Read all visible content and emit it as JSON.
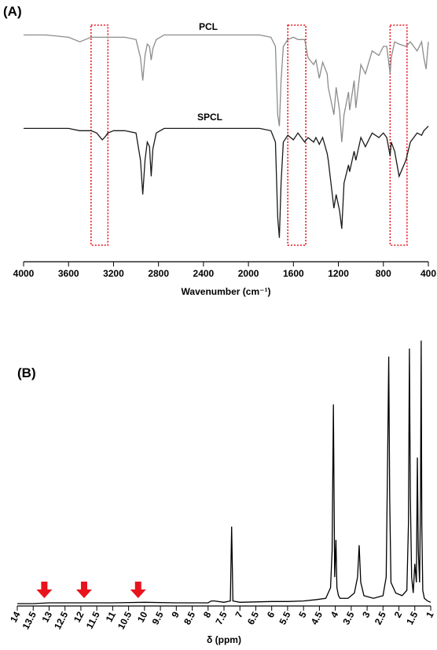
{
  "chart_data": [
    {
      "type": "line",
      "panel_label": "(A)",
      "xlabel": "Wavenumber (cm⁻¹)",
      "xlim": [
        4000,
        400
      ],
      "xticks": [
        4000,
        3600,
        3200,
        2800,
        2400,
        2000,
        1600,
        1200,
        800,
        400
      ],
      "ylim": [
        0,
        100
      ],
      "x": [
        4000,
        3800,
        3600,
        3500,
        3450,
        3400,
        3350,
        3300,
        3280,
        3250,
        3200,
        3100,
        3000,
        2960,
        2940,
        2920,
        2900,
        2880,
        2865,
        2850,
        2820,
        2750,
        2600,
        2400,
        2200,
        2000,
        1900,
        1800,
        1760,
        1740,
        1725,
        1710,
        1690,
        1650,
        1600,
        1560,
        1500,
        1470,
        1420,
        1400,
        1370,
        1340,
        1300,
        1290,
        1240,
        1220,
        1190,
        1170,
        1150,
        1110,
        1100,
        1060,
        1045,
        1000,
        960,
        900,
        840,
        800,
        770,
        740,
        730,
        700,
        660,
        600,
        560,
        500,
        460,
        440,
        420,
        400
      ],
      "series": [
        {
          "name": "PCL",
          "color": "#8c8c8c",
          "values": [
            95,
            95,
            94,
            92,
            93,
            94,
            94,
            94,
            94,
            94,
            94,
            94,
            93,
            85,
            75,
            86,
            91,
            90,
            84,
            89,
            93,
            95,
            95,
            95,
            95,
            95,
            95,
            94,
            90,
            60,
            55,
            75,
            90,
            93,
            94,
            93,
            93,
            85,
            82,
            84,
            76,
            83,
            78,
            72,
            60,
            72,
            62,
            48,
            60,
            70,
            62,
            75,
            63,
            82,
            78,
            88,
            86,
            90,
            90,
            78,
            85,
            92,
            91,
            90,
            92,
            88,
            92,
            85,
            80,
            92
          ]
        },
        {
          "name": "SPCL",
          "color": "#1a1a1a",
          "values": [
            54,
            54,
            54,
            53,
            53,
            53,
            52,
            49,
            50,
            52,
            53,
            53,
            52,
            40,
            25,
            40,
            48,
            46,
            33,
            45,
            52,
            54,
            54,
            54,
            54,
            54,
            54,
            53,
            48,
            15,
            6,
            30,
            48,
            51,
            49,
            52,
            48,
            50,
            48,
            50,
            47,
            50,
            43,
            40,
            19,
            25,
            18,
            10,
            30,
            38,
            35,
            44,
            40,
            50,
            46,
            52,
            50,
            52,
            50,
            42,
            48,
            44,
            33,
            40,
            48,
            52,
            51,
            53,
            54,
            55
          ]
        }
      ],
      "highlights": [
        [
          3400,
          3250
        ],
        [
          1650,
          1490
        ],
        [
          740,
          590
        ]
      ],
      "highlight_color": "#e8141c"
    },
    {
      "type": "line",
      "panel_label": "(B)",
      "xlabel": "δ (ppm)",
      "xlim": [
        14,
        1
      ],
      "xticks": [
        14,
        13.5,
        13,
        12.5,
        12,
        11.5,
        11,
        10.5,
        10,
        9.5,
        9,
        8.5,
        8,
        7.5,
        7,
        6.5,
        6,
        5.5,
        5,
        4.5,
        4,
        3.5,
        3,
        2.5,
        2,
        1.5,
        1
      ],
      "ylim": [
        0,
        100
      ],
      "x": [
        14,
        13.5,
        13,
        12,
        11,
        10,
        9,
        8,
        7.9,
        7.8,
        7.5,
        7.3,
        7.26,
        7.22,
        7,
        6,
        5.5,
        5,
        4.6,
        4.3,
        4.15,
        4.1,
        4.06,
        4.02,
        3.98,
        3.95,
        3.9,
        3.85,
        3.6,
        3.4,
        3.3,
        3.25,
        3.2,
        3.1,
        2.8,
        2.5,
        2.4,
        2.35,
        2.32,
        2.29,
        2.25,
        2.1,
        1.9,
        1.75,
        1.7,
        1.67,
        1.64,
        1.6,
        1.55,
        1.5,
        1.45,
        1.42,
        1.39,
        1.35,
        1.32,
        1.3,
        1.28,
        1.25,
        1.2,
        1.1,
        1
      ],
      "series": [
        {
          "color": "#000000",
          "values": [
            0,
            0,
            0.3,
            0.3,
            0.3,
            0.5,
            0.3,
            0.3,
            1,
            1,
            0.5,
            1,
            29,
            1,
            0.5,
            0.8,
            0.8,
            1,
            1.5,
            2,
            6,
            20,
            75,
            10,
            24,
            6,
            3,
            2,
            2,
            4,
            10,
            22,
            8,
            3,
            2,
            3,
            10,
            60,
            93,
            40,
            8,
            4,
            3,
            5,
            30,
            96,
            40,
            10,
            4,
            15,
            8,
            55,
            20,
            8,
            40,
            99,
            30,
            5,
            2,
            1,
            0.5
          ]
        }
      ],
      "arrows": [
        13.15,
        11.9,
        10.2
      ],
      "arrow_color": "#e8141c"
    }
  ]
}
